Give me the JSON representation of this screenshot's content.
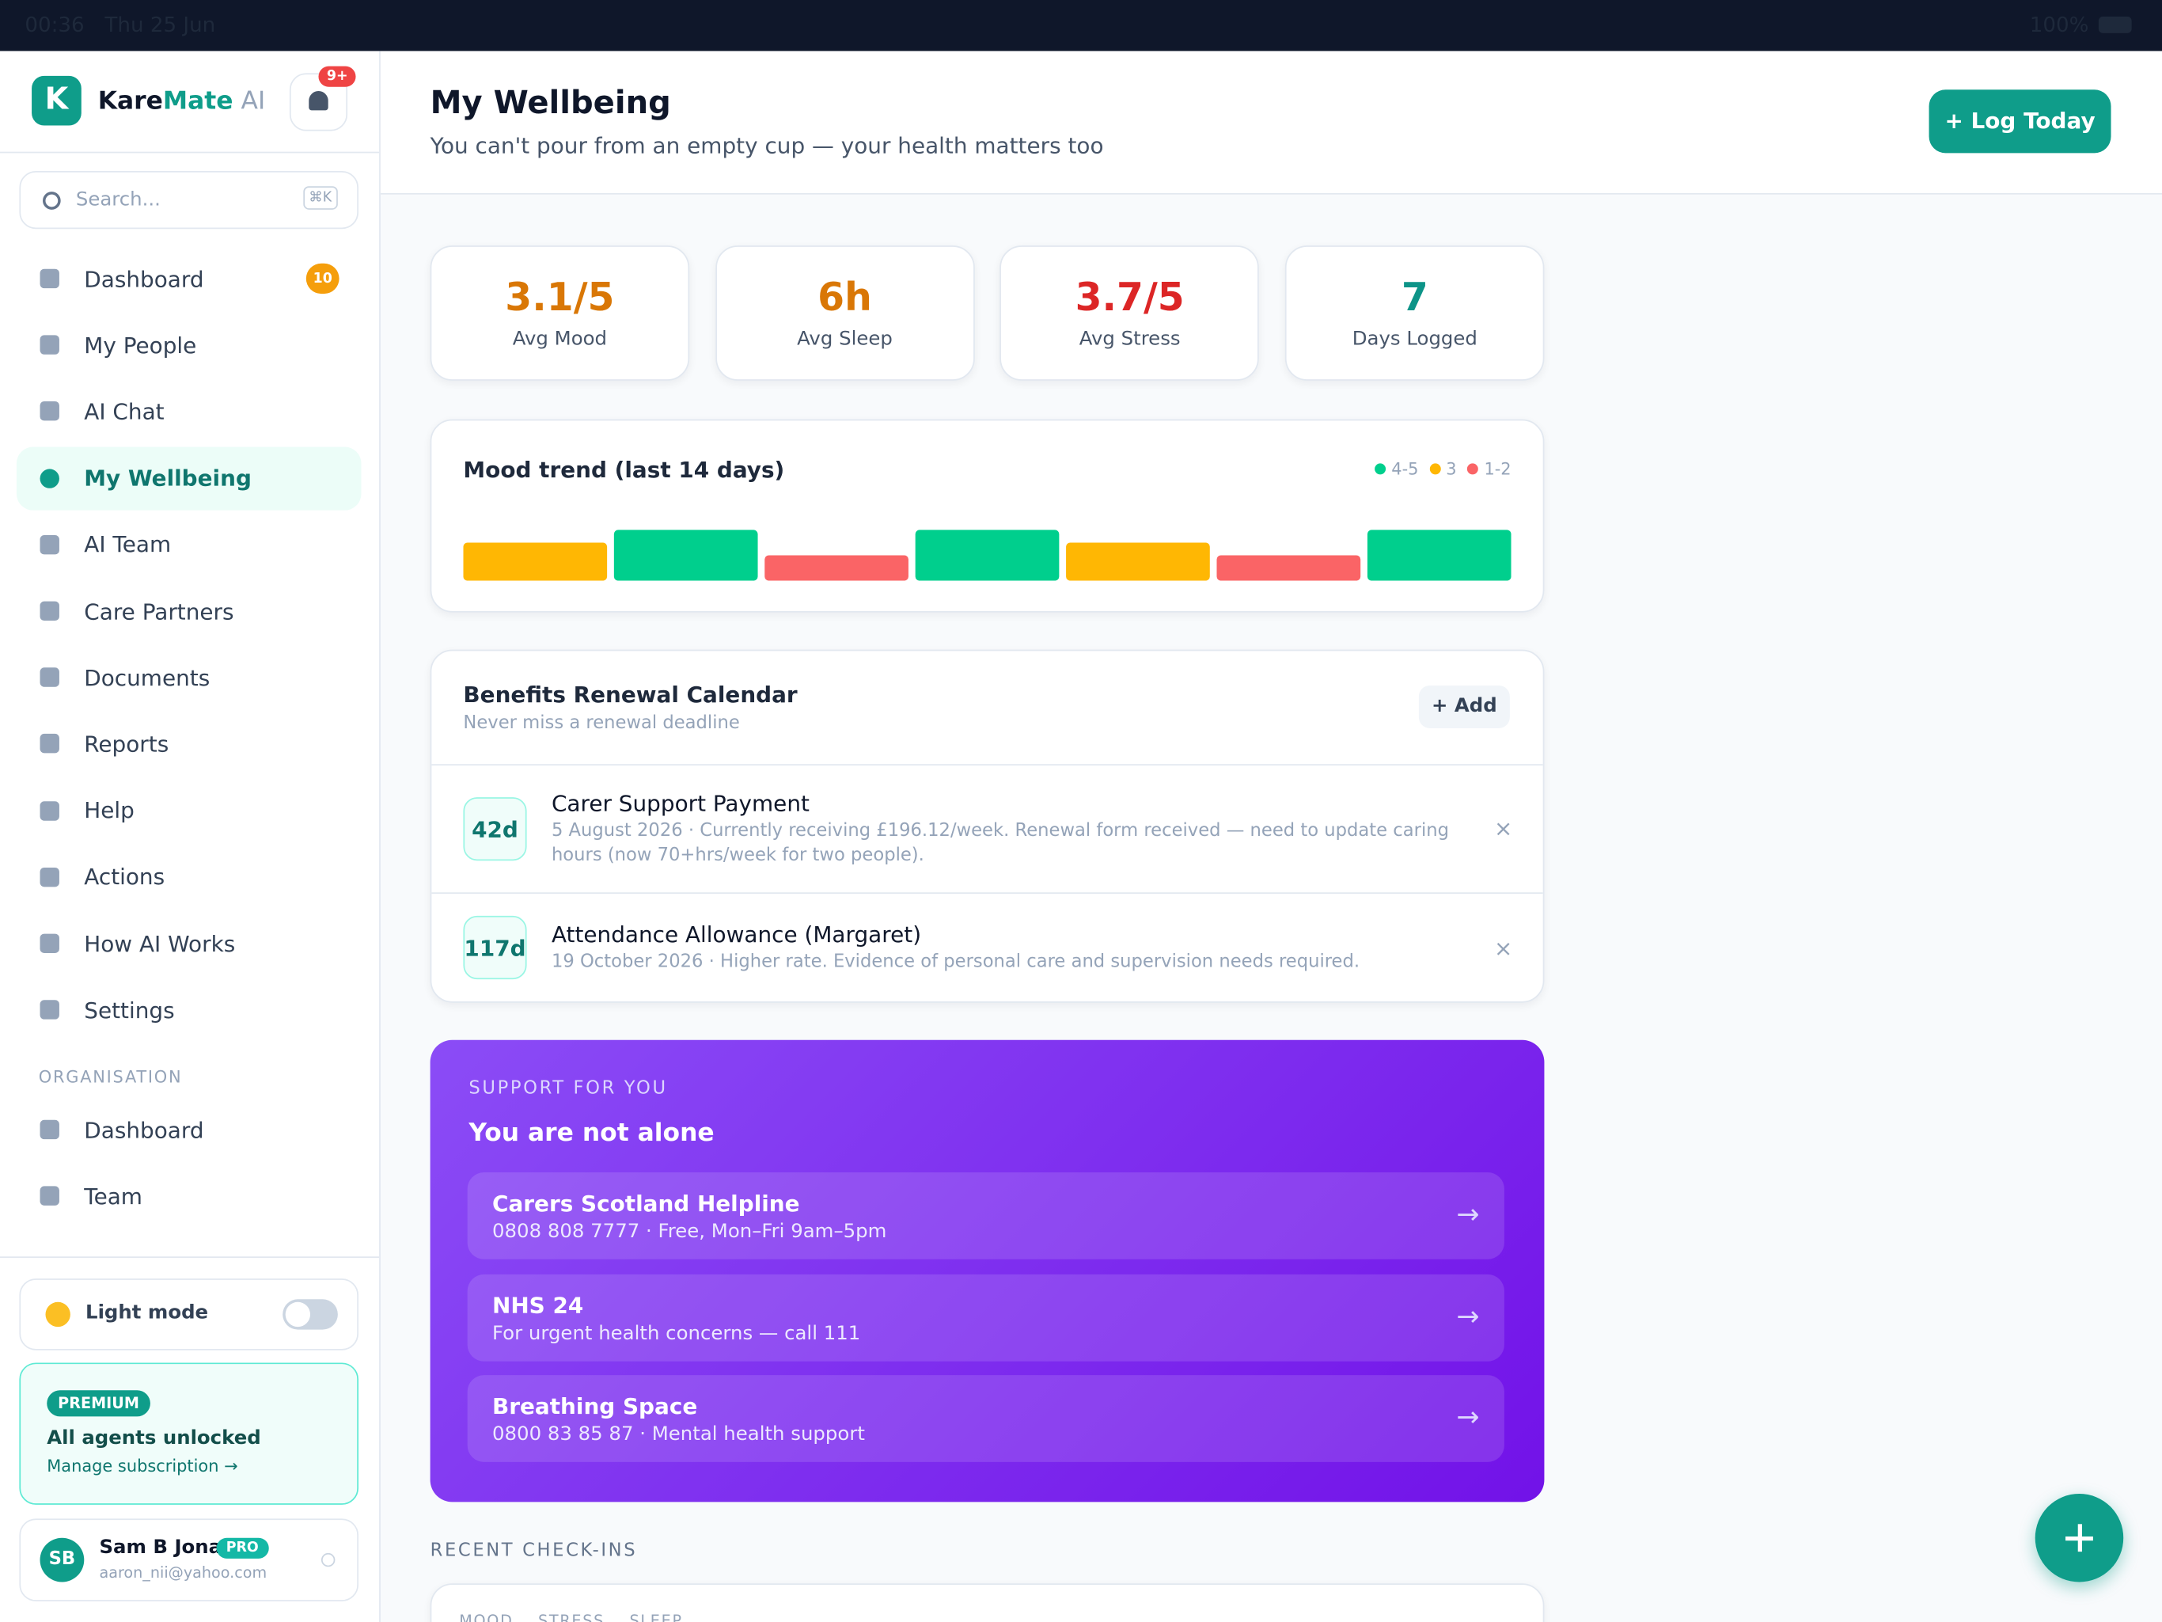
{
  "status": {
    "time": "00:36",
    "date": "Thu 25 Jun",
    "battery": "100%"
  },
  "sidebar": {
    "brand": [
      "Kare",
      "Mate",
      "AI"
    ],
    "notifications": "9+",
    "search": "Search...",
    "shortcut": "⌘K",
    "nav": [
      {
        "label": "Dashboard",
        "badge": "10"
      },
      {
        "label": "My People"
      },
      {
        "label": "AI Chat"
      },
      {
        "label": "My Wellbeing",
        "active": true
      },
      {
        "label": "AI Team"
      },
      {
        "label": "Care Partners"
      },
      {
        "label": "Documents"
      },
      {
        "label": "Reports"
      },
      {
        "label": "Help"
      },
      {
        "label": "Actions"
      },
      {
        "label": "How AI Works"
      },
      {
        "label": "Settings"
      }
    ],
    "section": "ORGANISATION",
    "org_nav": [
      {
        "label": "Dashboard"
      },
      {
        "label": "Team"
      }
    ],
    "theme": "Light mode",
    "premium": {
      "badge": "PREMIUM",
      "title": "All agents unlocked",
      "link": "Manage subscription →"
    },
    "user": {
      "initials": "SB",
      "name": "Sam B Jona",
      "tag": "PRO",
      "email": "aaron_nii@yahoo.com"
    }
  },
  "header": {
    "title": "My Wellbeing",
    "subtitle": "You can't pour from an empty cup — your health matters too",
    "button": "+ Log Today"
  },
  "stats": [
    {
      "value": "3.1/5",
      "label": "Avg Mood",
      "color": "#d97706"
    },
    {
      "value": "6h",
      "label": "Avg Sleep",
      "color": "#d97706"
    },
    {
      "value": "3.7/5",
      "label": "Avg Stress",
      "color": "#dc2626"
    },
    {
      "value": "7",
      "label": "Days Logged",
      "color": "#0d9488"
    }
  ],
  "chart_data": {
    "type": "bar",
    "title": "Mood trend (last 14 days)",
    "values": [
      3,
      4,
      2,
      4,
      3,
      2,
      4
    ],
    "ylim": [
      0,
      5
    ],
    "legend": [
      {
        "label": "4-5",
        "color": "#00cf8d",
        "min": 4
      },
      {
        "label": "3",
        "color": "#ffb703",
        "min": 3
      },
      {
        "label": "1-2",
        "color": "#fa6466",
        "min": 1
      }
    ]
  },
  "benefits": {
    "title": "Benefits Renewal Calendar",
    "subtitle": "Never miss a renewal deadline",
    "button": "+ Add",
    "items": [
      {
        "days": "42d",
        "title": "Carer Support Payment",
        "detail": "5 August 2026 · Currently receiving £196.12/week. Renewal form received — need to update caring hours (now 70+hrs/week for two people)."
      },
      {
        "days": "117d",
        "title": "Attendance Allowance (Margaret)",
        "detail": "19 October 2026 · Higher rate. Evidence of personal care and supervision needs required."
      }
    ]
  },
  "support": {
    "eyebrow": "SUPPORT FOR YOU",
    "title": "You are not alone",
    "items": [
      {
        "title": "Carers Scotland Helpline",
        "detail": "0808 808 7777 · Free, Mon–Fri 9am–5pm"
      },
      {
        "title": "NHS 24",
        "detail": "For urgent health concerns — call 111"
      },
      {
        "title": "Breathing Space",
        "detail": "0800 83 85 87 · Mental health support"
      }
    ]
  },
  "recent": {
    "title": "RECENT CHECK-INS",
    "columns": [
      "MOOD",
      "STRESS",
      "SLEEP"
    ]
  }
}
